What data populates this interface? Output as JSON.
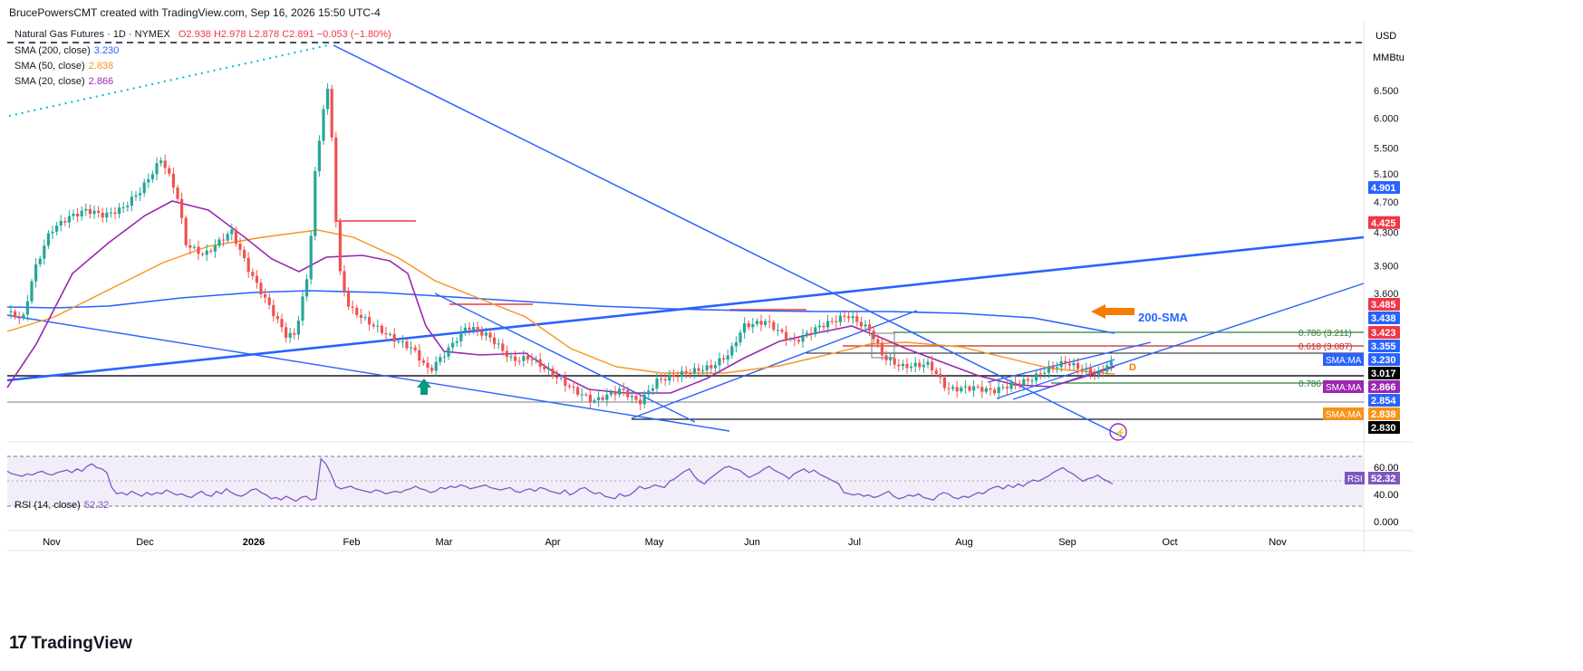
{
  "header": {
    "credit": "BrucePowersCMT created with TradingView.com, Sep 16, 2026 15:50 UTC-4"
  },
  "legend": {
    "symbol": "Natural Gas Futures · 1D · NYMEX",
    "ohlc": "O2.938  H2.978  L2.878  C2.891  −0.053 (−1.80%)",
    "sma200_label": "SMA (200, close)",
    "sma200_value": "3.230",
    "sma50_label": "SMA (50, close)",
    "sma50_value": "2.838",
    "sma20_label": "SMA (20, close)",
    "sma20_value": "2.866"
  },
  "rsi": {
    "label": "RSI (14, close)",
    "value": "52.32",
    "badge": "RSI",
    "ticks": [
      "60.00",
      "40.00",
      "0.000"
    ]
  },
  "axis": {
    "currency": "USD",
    "unit": "MMBtu"
  },
  "annotations": {
    "sma200_text": "200-SMA",
    "fib_786_upper": "0.786 (3.211)",
    "fib_618": "0.618 (3.087)",
    "fib_786_lower": "0.786 (2.9",
    "pattern_letter": "D"
  },
  "brand": {
    "name": "TradingView"
  },
  "colors": {
    "up": "#26a69a",
    "down": "#ef5350",
    "sma200": "#2962ff",
    "sma50": "#f7931a",
    "sma20": "#9c27b0",
    "trend": "#2962ff"
  },
  "chart_data": {
    "type": "candlestick",
    "title": "Natural Gas Futures · 1D · NYMEX",
    "x_ticks": [
      "Nov",
      "Dec",
      "2026",
      "Feb",
      "Mar",
      "Apr",
      "May",
      "Jun",
      "Jul",
      "Aug",
      "Sep",
      "Oct",
      "Nov"
    ],
    "y_ticks": [
      "6.500",
      "6.000",
      "5.500",
      "5.100",
      "4.700",
      "4.300",
      "3.900",
      "3.600"
    ],
    "price_labels": [
      {
        "text": "4.901",
        "color": "#2962ff"
      },
      {
        "text": "4.425",
        "color": "#f23645"
      },
      {
        "text": "3.485",
        "color": "#f23645"
      },
      {
        "text": "3.438",
        "color": "#2962ff"
      },
      {
        "text": "3.423",
        "color": "#f23645"
      },
      {
        "text": "3.355",
        "color": "#2962ff"
      },
      {
        "tag": "SMA:MA",
        "text": "3.230",
        "color": "#2962ff"
      },
      {
        "text": "3.017",
        "color": "#000000"
      },
      {
        "tag": "SMA:MA",
        "text": "2.866",
        "color": "#9c27b0"
      },
      {
        "text": "2.854",
        "color": "#2962ff"
      },
      {
        "tag": "SMA:MA",
        "text": "2.838",
        "color": "#f7931a"
      },
      {
        "text": "2.830",
        "color": "#000000"
      }
    ],
    "series": [
      {
        "name": "SMA (200, close)",
        "last": 3.23
      },
      {
        "name": "SMA (50, close)",
        "last": 2.838
      },
      {
        "name": "SMA (20, close)",
        "last": 2.866
      }
    ],
    "last": {
      "open": 2.938,
      "high": 2.978,
      "low": 2.878,
      "close": 2.891
    }
  }
}
